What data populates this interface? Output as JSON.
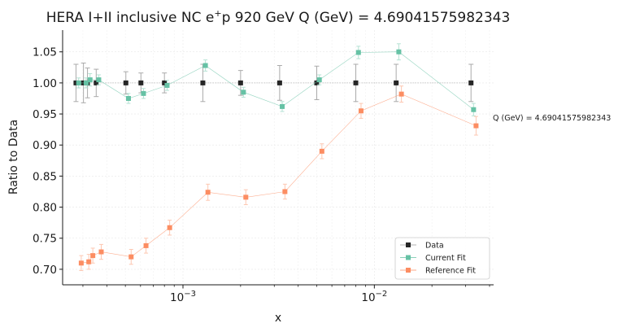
{
  "chart_data": {
    "type": "scatter",
    "title": "HERA I+II inclusive NC e$^+$p 920 GeV Q (GeV) = 4.69041575982343",
    "title_parts": {
      "pre": "HERA I+II inclusive NC e",
      "sup": "+",
      "post": "p 920 GeV Q (GeV) = 4.69041575982343"
    },
    "xlabel": "x",
    "ylabel": "Ratio to Data",
    "x_scale": "log",
    "xlim": [
      0.000235,
      0.042
    ],
    "ylim": [
      0.675,
      1.085
    ],
    "grid": true,
    "legend_position": "lower right",
    "annotation": "Q (GeV) = 4.69041575982343",
    "y_ticks": [
      0.7,
      0.75,
      0.8,
      0.85,
      0.9,
      0.95,
      1.0,
      1.05
    ],
    "y_tick_labels": [
      "0.70",
      "0.75",
      "0.80",
      "0.85",
      "0.90",
      "0.95",
      "1.00",
      "1.05"
    ],
    "x_ticks": [
      0.001,
      0.01
    ],
    "x_tick_labels": [
      {
        "base": "10",
        "exp": "−3"
      },
      {
        "base": "10",
        "exp": "−2"
      }
    ],
    "series": [
      {
        "name": "Data",
        "color": "#262626",
        "x": [
          0.000276,
          0.000302,
          0.000317,
          0.000352,
          0.000503,
          0.000603,
          0.0008,
          0.00127,
          0.002,
          0.0032,
          0.005,
          0.008,
          0.013,
          0.032
        ],
        "y": [
          1.0,
          1.0,
          1.0,
          1.0,
          1.0,
          1.0,
          1.0,
          1.0,
          1.0,
          1.0,
          1.0,
          1.0,
          1.0,
          1.0
        ],
        "err": [
          0.03,
          0.032,
          0.024,
          0.022,
          0.018,
          0.016,
          0.016,
          0.03,
          0.02,
          0.028,
          0.027,
          0.03,
          0.03,
          0.03
        ]
      },
      {
        "name": "Current Fit",
        "color": "#66c2a5",
        "x": [
          0.000285,
          0.000312,
          0.000327,
          0.000363,
          0.000519,
          0.000622,
          0.000826,
          0.00131,
          0.00207,
          0.0033,
          0.00516,
          0.00826,
          0.01342,
          0.033
        ],
        "y": [
          1.0,
          1.0,
          1.005,
          1.005,
          0.975,
          0.983,
          0.996,
          1.028,
          0.985,
          0.962,
          1.005,
          1.049,
          1.05,
          0.957
        ],
        "err": [
          0.008,
          0.008,
          0.01,
          0.008,
          0.008,
          0.008,
          0.008,
          0.009,
          0.008,
          0.008,
          0.008,
          0.01,
          0.013,
          0.01
        ]
      },
      {
        "name": "Reference Fit",
        "color": "#fc8d62",
        "x": [
          0.000294,
          0.000322,
          0.000338,
          0.000374,
          0.000536,
          0.000641,
          0.000852,
          0.00135,
          0.00213,
          0.00341,
          0.00532,
          0.00852,
          0.01385,
          0.034
        ],
        "y": [
          0.71,
          0.712,
          0.722,
          0.728,
          0.72,
          0.738,
          0.767,
          0.824,
          0.816,
          0.825,
          0.89,
          0.955,
          0.982,
          0.931
        ],
        "err": [
          0.012,
          0.012,
          0.012,
          0.012,
          0.012,
          0.012,
          0.012,
          0.013,
          0.012,
          0.012,
          0.012,
          0.012,
          0.013,
          0.015
        ]
      }
    ]
  }
}
